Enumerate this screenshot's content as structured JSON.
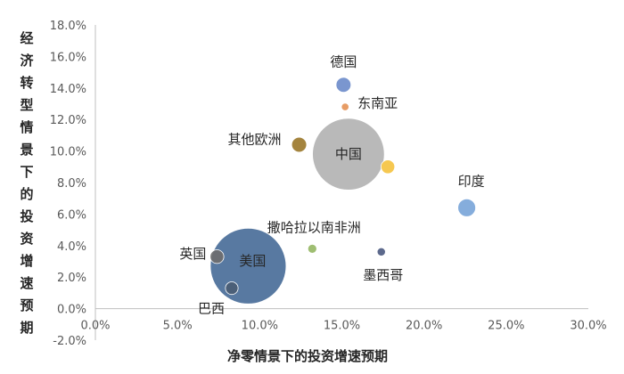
{
  "chart_data": {
    "type": "bubble",
    "xlabel": "净零情景下的投资增速预期",
    "ylabel": "经济转型情景下的投资增速预期",
    "xlim": [
      0,
      0.3
    ],
    "ylim": [
      -0.02,
      0.18
    ],
    "x_ticks": [
      0,
      0.05,
      0.1,
      0.15,
      0.2,
      0.25,
      0.3
    ],
    "x_tick_labels": [
      "0.0%",
      "5.0%",
      "10.0%",
      "15.0%",
      "20.0%",
      "25.0%",
      "30.0%"
    ],
    "y_ticks": [
      -0.02,
      0,
      0.02,
      0.04,
      0.06,
      0.08,
      0.1,
      0.12,
      0.14,
      0.16,
      0.18
    ],
    "y_tick_labels": [
      "-2.0%",
      "0.0%",
      "2.0%",
      "4.0%",
      "6.0%",
      "8.0%",
      "10.0%",
      "12.0%",
      "14.0%",
      "16.0%",
      "18.0%"
    ],
    "grid": false,
    "legend": "none",
    "points": [
      {
        "label": "美国",
        "x": 0.093,
        "y": 0.027,
        "size": 100,
        "color": "#4A6E99"
      },
      {
        "label": "中国",
        "x": 0.154,
        "y": 0.098,
        "size": 90,
        "color": "#B3B3B3"
      },
      {
        "label": "其他欧洲",
        "x": 0.124,
        "y": 0.104,
        "size": 3.9,
        "color": "#9C7A2E"
      },
      {
        "label": "德国",
        "x": 0.151,
        "y": 0.142,
        "size": 3.9,
        "color": "#6F8DCB"
      },
      {
        "label": "东南亚",
        "x": 0.152,
        "y": 0.128,
        "size": 1.0,
        "color": "#E59458"
      },
      {
        "label": "",
        "x": 0.178,
        "y": 0.09,
        "size": 3.3,
        "color": "#F5C342"
      },
      {
        "label": "印度",
        "x": 0.226,
        "y": 0.064,
        "size": 5.5,
        "color": "#7BA6D9"
      },
      {
        "label": "撒哈拉以南非洲",
        "x": 0.132,
        "y": 0.038,
        "size": 1.4,
        "color": "#97B866"
      },
      {
        "label": "墨西哥",
        "x": 0.174,
        "y": 0.036,
        "size": 1.2,
        "color": "#4E5C82"
      },
      {
        "label": "英国",
        "x": 0.074,
        "y": 0.033,
        "size": 3.3,
        "color": "#6E6E6E"
      },
      {
        "label": "巴西",
        "x": 0.083,
        "y": 0.013,
        "size": 2.8,
        "color": "#4A5D74"
      }
    ]
  }
}
